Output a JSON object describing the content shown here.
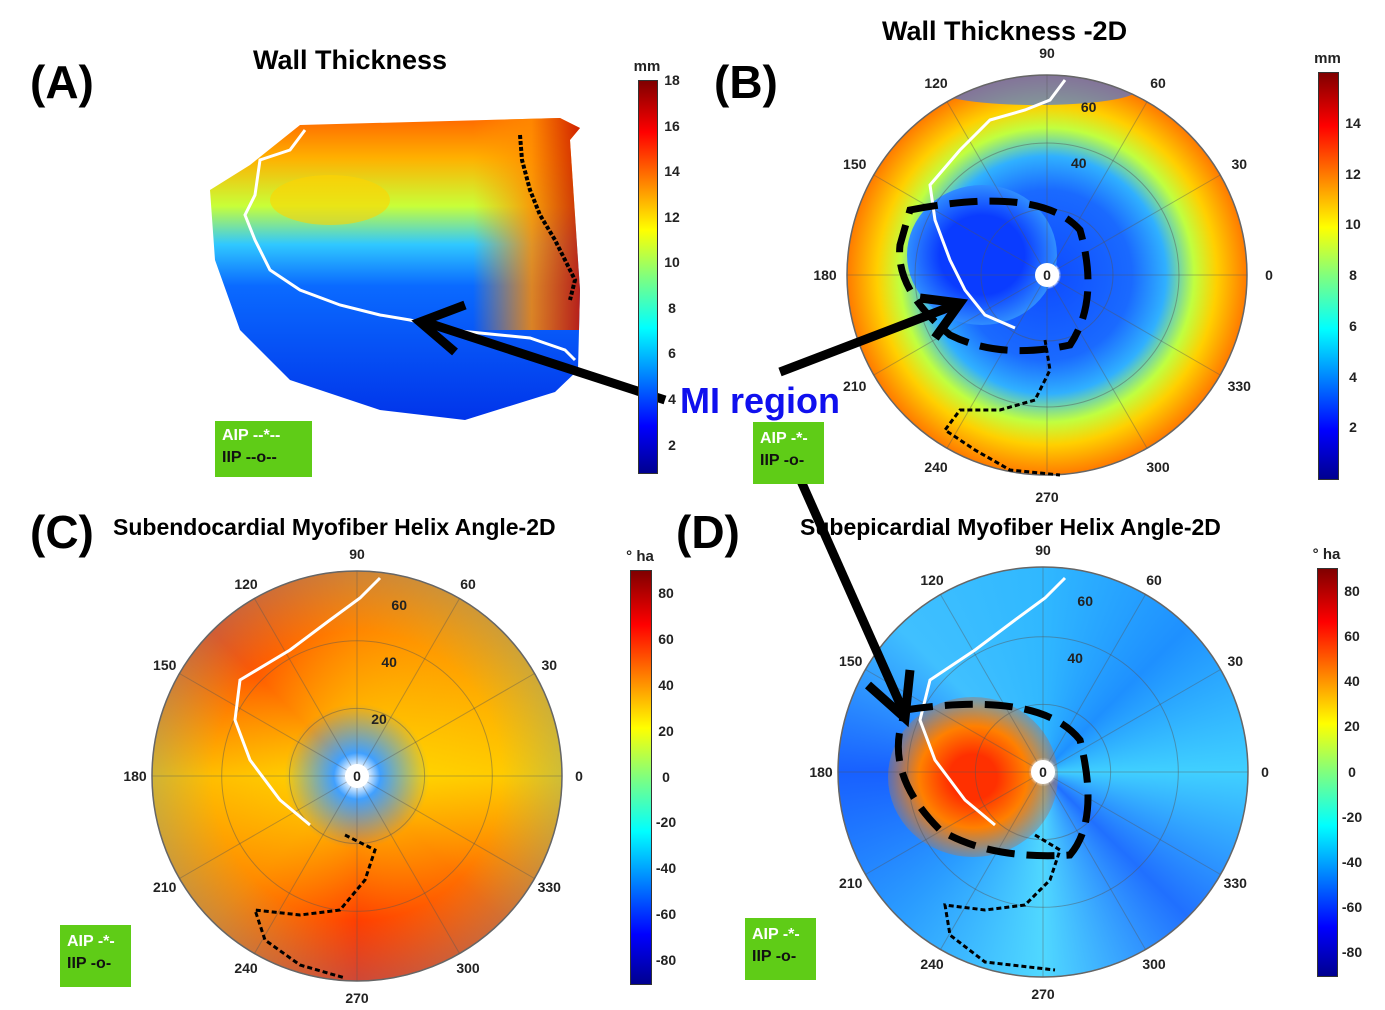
{
  "annotation": {
    "text": "MI region",
    "color": "#1010ee"
  },
  "legend": {
    "aip": "AIP --*--",
    "iip": "IIP --o--",
    "aip_short": "AIP -*-",
    "iip_short": "IIP -o-",
    "color": "#5fcc17"
  },
  "chart_data": [
    {
      "panel": "(A)",
      "type": "heatmap",
      "title": "Wall Thickness",
      "colorbar": {
        "label": "mm",
        "ticks": [
          2,
          4,
          6,
          8,
          10,
          12,
          14,
          16,
          18
        ],
        "range": [
          0.8,
          18
        ],
        "colormap": "jet"
      },
      "legend": [
        "AIP --*--",
        "IIP --o--"
      ]
    },
    {
      "panel": "(B)",
      "type": "heatmap",
      "projection": "polar",
      "title": "Wall Thickness -2D",
      "angle_ticks": [
        0,
        30,
        60,
        90,
        120,
        150,
        180,
        210,
        240,
        270,
        300,
        330
      ],
      "radial_ticks": [
        0,
        40,
        60
      ],
      "colorbar": {
        "label": "mm",
        "ticks": [
          2,
          4,
          6,
          8,
          10,
          12,
          14
        ],
        "range": [
          0,
          16
        ],
        "colormap": "jet"
      },
      "legend": [
        "AIP -*-",
        "IIP -o-"
      ]
    },
    {
      "panel": "(C)",
      "type": "heatmap",
      "projection": "polar",
      "title": "Subendocardial Myofiber Helix Angle-2D",
      "angle_ticks": [
        0,
        30,
        60,
        90,
        120,
        150,
        180,
        210,
        240,
        270,
        300,
        330
      ],
      "radial_ticks": [
        0,
        20,
        40,
        60
      ],
      "colorbar": {
        "label": "° ha",
        "ticks": [
          80,
          60,
          40,
          20,
          0,
          -20,
          -40,
          -60,
          -80
        ],
        "range": [
          -90,
          90
        ],
        "colormap": "jet"
      },
      "legend": [
        "AIP -*-",
        "IIP -o-"
      ]
    },
    {
      "panel": "(D)",
      "type": "heatmap",
      "projection": "polar",
      "title": "Subepicardial Myofiber Helix Angle-2D",
      "angle_ticks": [
        0,
        30,
        60,
        90,
        120,
        150,
        180,
        210,
        240,
        270,
        300,
        330
      ],
      "radial_ticks": [
        0,
        40,
        60
      ],
      "colorbar": {
        "label": "° ha",
        "ticks": [
          80,
          60,
          40,
          20,
          0,
          -20,
          -40,
          -60,
          -80
        ],
        "range": [
          -90,
          90
        ],
        "colormap": "jet"
      },
      "legend": [
        "AIP -*-",
        "IIP -o-"
      ]
    }
  ]
}
